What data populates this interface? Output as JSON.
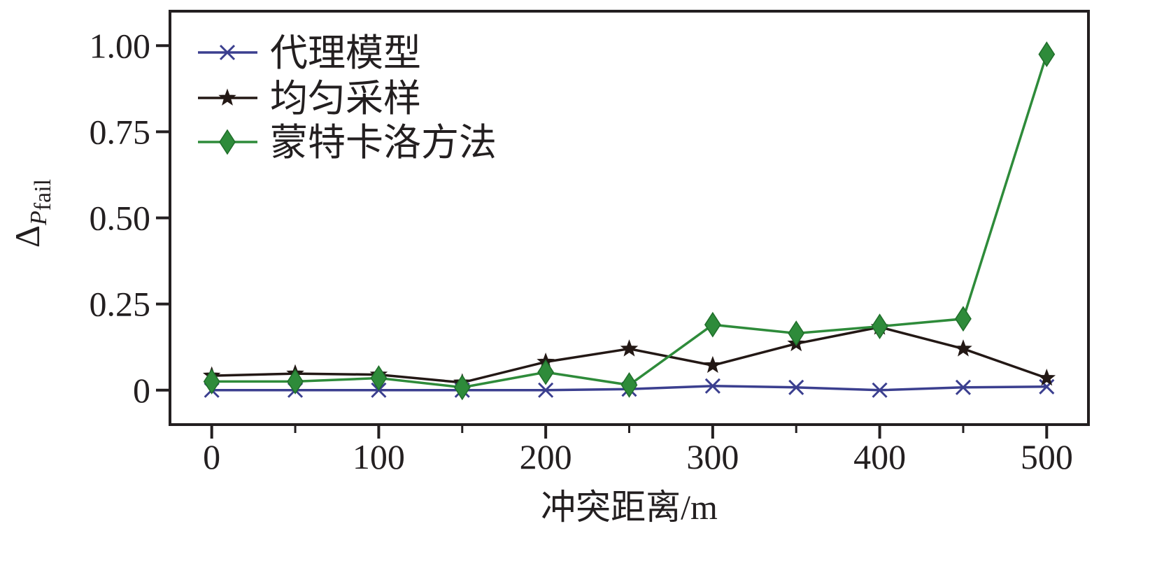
{
  "chart_data": {
    "type": "line",
    "title": "",
    "xlabel": "冲突距离/m",
    "ylabel": {
      "symbol": "Δ",
      "sub": "P",
      "subsub": "fail"
    },
    "xlim": [
      -25,
      525
    ],
    "ylim": [
      -0.1,
      1.1
    ],
    "xticks": [
      0,
      100,
      200,
      300,
      400,
      500
    ],
    "xtick_labels": [
      "0",
      "100",
      "200",
      "300",
      "400",
      "500"
    ],
    "xticks_minor": [
      50,
      150,
      250,
      350,
      450
    ],
    "yticks": [
      0,
      0.25,
      0.5,
      0.75,
      1.0
    ],
    "ytick_labels": [
      "0",
      "0.25",
      "0.50",
      "0.75",
      "1.00"
    ],
    "grid": false,
    "legend_position": "top-left",
    "x": [
      0,
      50,
      100,
      150,
      200,
      250,
      300,
      350,
      400,
      450,
      500
    ],
    "series": [
      {
        "name": "代理模型",
        "marker": "x",
        "color": "#3b3f8f",
        "values": [
          0.0,
          0.0,
          0.0,
          0.0,
          0.0,
          0.003,
          0.012,
          0.008,
          0.0,
          0.008,
          0.01
        ]
      },
      {
        "name": "均匀采样",
        "marker": "star",
        "color": "#231815",
        "values": [
          0.042,
          0.048,
          0.045,
          0.022,
          0.082,
          0.12,
          0.072,
          0.135,
          0.183,
          0.12,
          0.035
        ]
      },
      {
        "name": "蒙特卡洛方法",
        "marker": "diamond",
        "color": "#2e8b3a",
        "values": [
          0.025,
          0.025,
          0.035,
          0.008,
          0.052,
          0.015,
          0.19,
          0.165,
          0.185,
          0.207,
          0.975
        ]
      }
    ]
  }
}
